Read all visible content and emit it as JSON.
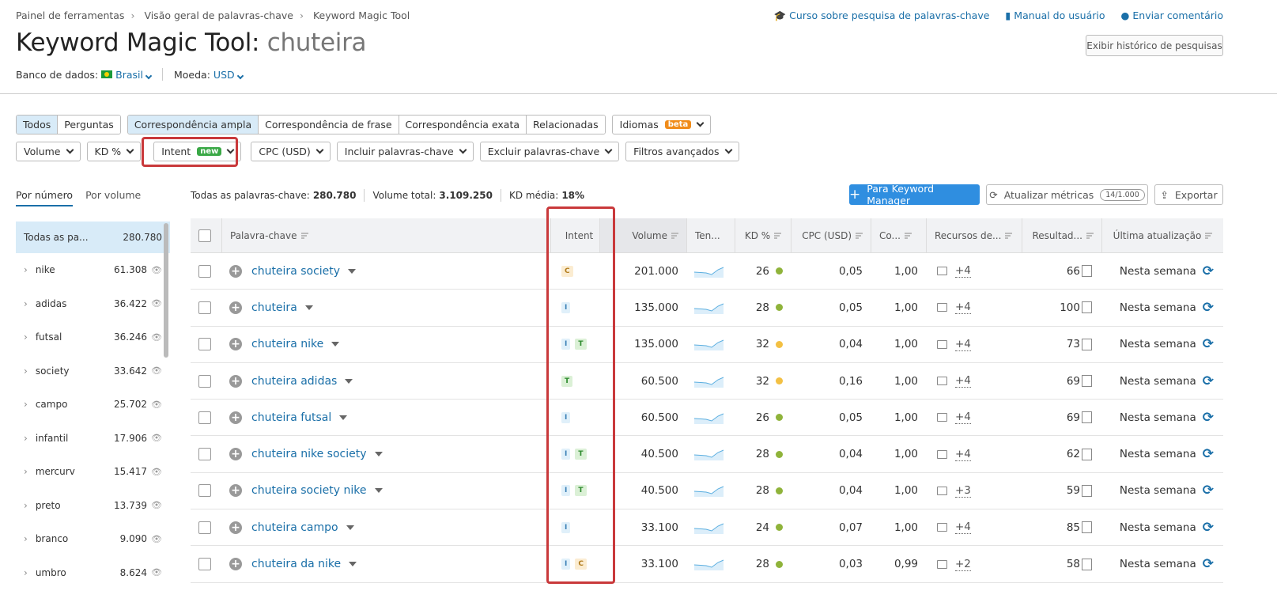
{
  "breadcrumb": [
    "Painel de ferramentas",
    "Visão geral de palavras-chave",
    "Keyword Magic Tool"
  ],
  "top_links": {
    "course": "Curso sobre pesquisa de palavras-chave",
    "manual": "Manual do usuário",
    "feedback": "Enviar comentário"
  },
  "title": {
    "tool": "Keyword Magic Tool:",
    "keyword": "chuteira"
  },
  "history_button": "Exibir histórico de pesquisas",
  "database": {
    "label": "Banco de dados:",
    "value": "Brasil",
    "currency_label": "Moeda:",
    "currency": "USD"
  },
  "match_tabs": {
    "group1": [
      "Todos",
      "Perguntas"
    ],
    "group2": [
      "Correspondência ampla",
      "Correspondência de frase",
      "Correspondência exata",
      "Relacionadas"
    ],
    "languages": "Idiomas",
    "languages_badge": "beta"
  },
  "filters": {
    "volume": "Volume",
    "kd": "KD %",
    "intent": "Intent",
    "intent_badge": "new",
    "cpc": "CPC (USD)",
    "include": "Incluir palavras-chave",
    "exclude": "Excluir palavras-chave",
    "advanced": "Filtros avançados"
  },
  "side_tabs": [
    "Por número",
    "Por volume"
  ],
  "stats": {
    "all_label": "Todas as palavras-chave:",
    "all": "280.780",
    "volume_label": "Volume total:",
    "volume": "3.109.250",
    "kd_label": "KD média:",
    "kd": "18%"
  },
  "actions": {
    "manager": "Para Keyword Manager",
    "update": "Atualizar métricas",
    "update_count": "14/1.000",
    "export": "Exportar"
  },
  "sidebar": [
    {
      "name": "Todas as pa...",
      "count": "280.780"
    },
    {
      "name": "nike",
      "count": "61.308"
    },
    {
      "name": "adidas",
      "count": "36.422"
    },
    {
      "name": "futsal",
      "count": "36.246"
    },
    {
      "name": "society",
      "count": "33.642"
    },
    {
      "name": "campo",
      "count": "25.702"
    },
    {
      "name": "infantil",
      "count": "17.906"
    },
    {
      "name": "mercurv",
      "count": "15.417"
    },
    {
      "name": "preto",
      "count": "13.739"
    },
    {
      "name": "branco",
      "count": "9.090"
    },
    {
      "name": "umbro",
      "count": "8.624"
    }
  ],
  "columns": [
    "Palavra-chave",
    "Intent",
    "Volume",
    "Ten...",
    "KD %",
    "CPC (USD)",
    "Co...",
    "Recursos de...",
    "Resultad...",
    "Última atualização"
  ],
  "colors": {
    "kd_green": "#8fb33a",
    "kd_yellow": "#f3c043",
    "accent": "#2f8ee0",
    "highlight": "#c9393b"
  },
  "rows": [
    {
      "kw": "chuteira society",
      "intent": [
        "C"
      ],
      "volume": "201.000",
      "kd": "26",
      "kd_color": "green",
      "cpc": "0,05",
      "com": "1,00",
      "serp": "+4",
      "results": "66",
      "updated": "Nesta semana"
    },
    {
      "kw": "chuteira",
      "intent": [
        "I"
      ],
      "volume": "135.000",
      "kd": "28",
      "kd_color": "green",
      "cpc": "0,05",
      "com": "1,00",
      "serp": "+4",
      "results": "100",
      "updated": "Nesta semana"
    },
    {
      "kw": "chuteira nike",
      "intent": [
        "I",
        "T"
      ],
      "volume": "135.000",
      "kd": "32",
      "kd_color": "yellow",
      "cpc": "0,04",
      "com": "1,00",
      "serp": "+4",
      "results": "73",
      "updated": "Nesta semana"
    },
    {
      "kw": "chuteira adidas",
      "intent": [
        "T"
      ],
      "volume": "60.500",
      "kd": "32",
      "kd_color": "yellow",
      "cpc": "0,16",
      "com": "1,00",
      "serp": "+4",
      "results": "69",
      "updated": "Nesta semana"
    },
    {
      "kw": "chuteira futsal",
      "intent": [
        "I"
      ],
      "volume": "60.500",
      "kd": "26",
      "kd_color": "green",
      "cpc": "0,05",
      "com": "1,00",
      "serp": "+4",
      "results": "69",
      "updated": "Nesta semana"
    },
    {
      "kw": "chuteira nike society",
      "intent": [
        "I",
        "T"
      ],
      "volume": "40.500",
      "kd": "28",
      "kd_color": "green",
      "cpc": "0,04",
      "com": "1,00",
      "serp": "+4",
      "results": "62",
      "updated": "Nesta semana"
    },
    {
      "kw": "chuteira society nike",
      "intent": [
        "I",
        "T"
      ],
      "volume": "40.500",
      "kd": "28",
      "kd_color": "green",
      "cpc": "0,04",
      "com": "1,00",
      "serp": "+3",
      "results": "59",
      "updated": "Nesta semana"
    },
    {
      "kw": "chuteira campo",
      "intent": [
        "I"
      ],
      "volume": "33.100",
      "kd": "24",
      "kd_color": "green",
      "cpc": "0,07",
      "com": "1,00",
      "serp": "+4",
      "results": "85",
      "updated": "Nesta semana"
    },
    {
      "kw": "chuteira da nike",
      "intent": [
        "I",
        "C"
      ],
      "volume": "33.100",
      "kd": "28",
      "kd_color": "green",
      "cpc": "0,03",
      "com": "0,99",
      "serp": "+2",
      "results": "58",
      "updated": "Nesta semana"
    }
  ]
}
